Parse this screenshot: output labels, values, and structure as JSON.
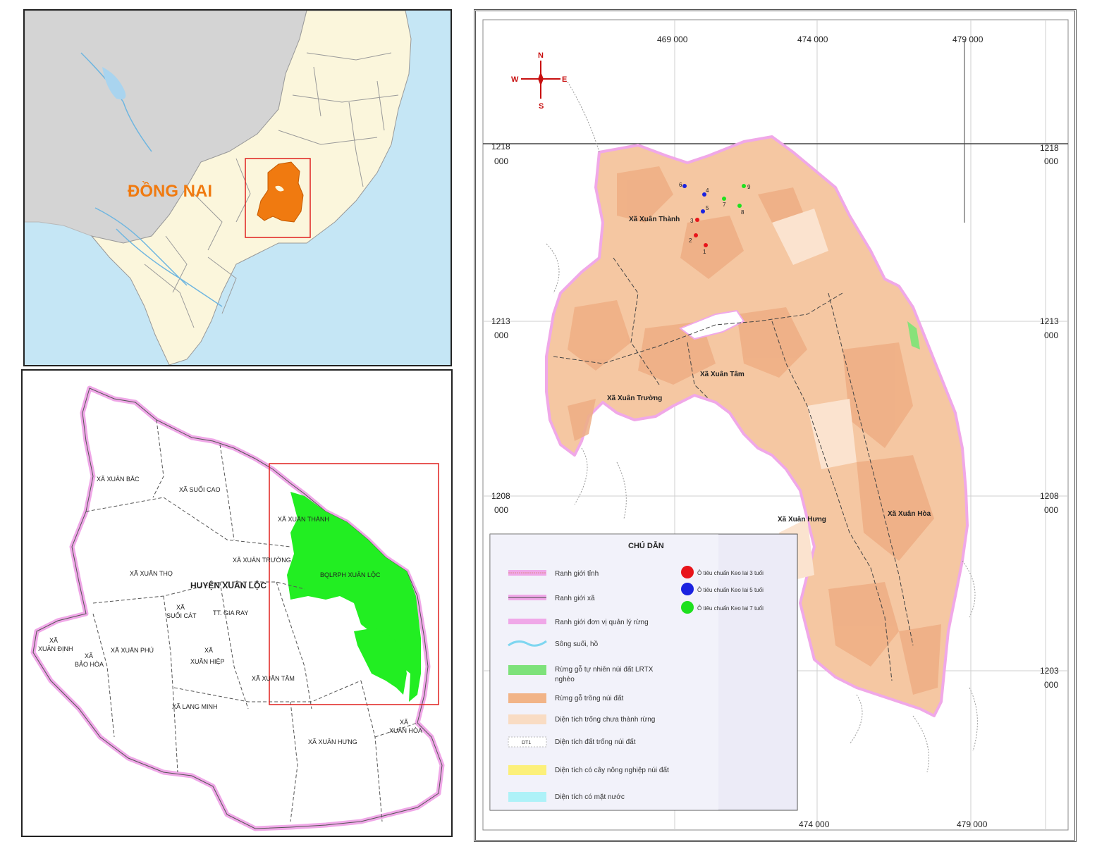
{
  "colors": {
    "sea": "#c5e6f5",
    "land_gray": "#d4d4d4",
    "land_cream": "#fbf6dc",
    "dongnai_orange": "#f07a10",
    "highlight_red": "#e0201e",
    "district_green": "#22ee22",
    "plantation": "#f5c7a2",
    "plantation_dark": "#eeae84",
    "boundary_pink": "#f0a8e8",
    "legend_bg": "#ecebf7"
  },
  "top_left_map": {
    "province_label": "ĐỒNG NAI"
  },
  "bottom_left_map": {
    "district_label": "HUYỆN XUÂN LỘC",
    "communes": [
      "XÃ XUÂN BẮC",
      "XÃ SUỐI CAO",
      "XÃ XUÂN THÀNH",
      "XÃ XUÂN TRƯỜNG",
      "XÃ XUÂN THỌ",
      "BQLRPH XUÂN LỘC",
      "XÃ",
      "SUỐI CÁT",
      "TT. GIA RAY",
      "XÃ",
      "XUÂN ĐỊNH",
      "XÃ",
      "BẢO HÒA",
      "XÃ XUÂN PHÚ",
      "XÃ",
      "XUÂN HIỆP",
      "XÃ XUÂN TÂM",
      "XÃ LANG MINH",
      "XÃ XUÂN HƯNG",
      "XÃ",
      "XUÂN HÒA"
    ]
  },
  "right_map": {
    "grid_x_top": [
      "469 000",
      "474 000",
      "479 000"
    ],
    "grid_x_bottom": [
      "474 000",
      "479 000"
    ],
    "grid_y": [
      {
        "l1": "1218",
        "l2": "000"
      },
      {
        "l1": "1213",
        "l2": "000"
      },
      {
        "l1": "1208",
        "l2": "000"
      },
      {
        "l1": "1203",
        "l2": "000"
      }
    ],
    "compass": {
      "n": "N",
      "s": "S",
      "e": "E",
      "w": "W"
    },
    "commune_labels": [
      "Xã Xuân Thành",
      "Xã Xuân Tâm",
      "Xã Xuân Trường",
      "Xã Xuân Hưng",
      "Xã Xuân Hòa"
    ],
    "plot_numbers": [
      "6",
      "4",
      "5",
      "2",
      "3",
      "1",
      "7",
      "8",
      "9"
    ],
    "legend": {
      "title": "CHÚ DẪN",
      "left_items": [
        "Ranh giới tỉnh",
        "Ranh giới xã",
        "Ranh giới đơn vị quản lý rừng",
        "Sông suối, hồ",
        "Rừng gỗ tự nhiên núi đất LRTX",
        "nghèo",
        "Rừng gỗ trồng núi đất",
        "Diện tích trống chưa thành rừng",
        "Diện tích đất trống núi đất",
        "Diện tích có cây nông nghiệp núi đất",
        "Diện tích có mặt nước"
      ],
      "swatch_code": "DT1",
      "right_items": [
        {
          "label": "Ô tiêu chuẩn Keo lai 3 tuổi",
          "color": "#e8141a"
        },
        {
          "label": "Ô tiêu chuẩn Keo lai 5 tuổi",
          "color": "#1a22e0"
        },
        {
          "label": "Ô tiêu chuẩn Keo lai 7 tuổi",
          "color": "#1ee01e"
        }
      ]
    }
  }
}
